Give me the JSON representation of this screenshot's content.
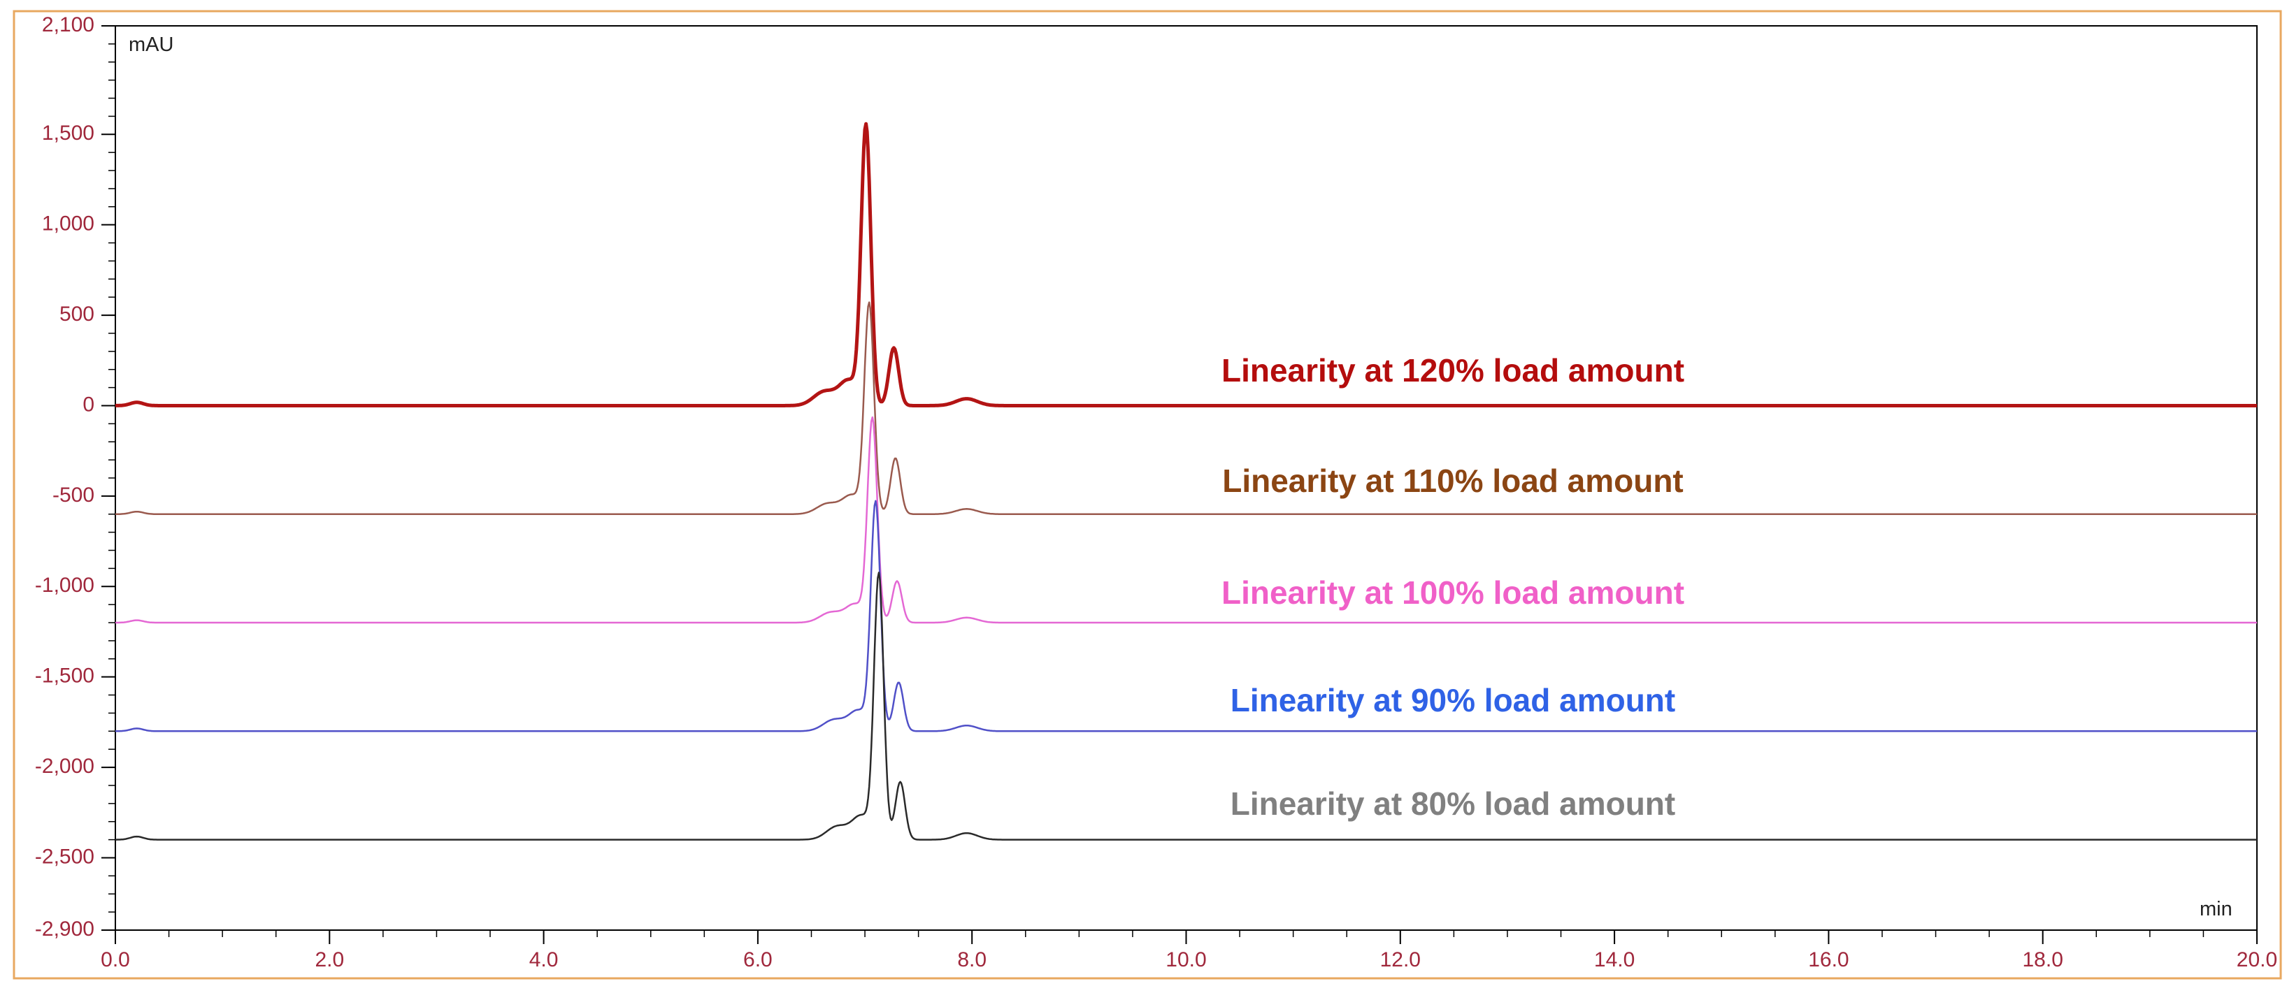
{
  "chart_data": {
    "type": "line",
    "title": "",
    "xlabel": "min",
    "ylabel": "mAU",
    "xlim": [
      0,
      20
    ],
    "ylim": [
      -2900,
      2100
    ],
    "x_ticks": [
      "0.0",
      "2.0",
      "4.0",
      "6.0",
      "8.0",
      "10.0",
      "12.0",
      "14.0",
      "16.0",
      "18.0",
      "20.0"
    ],
    "y_ticks": [
      "2,100",
      "1,500",
      "1,000",
      "500",
      "0",
      "-500",
      "-1,000",
      "-1,500",
      "-2,000",
      "-2,500",
      "-2,900"
    ],
    "y_tick_values": [
      2100,
      1500,
      1000,
      500,
      0,
      -500,
      -1000,
      -1500,
      -2000,
      -2500,
      -2900
    ],
    "x_tick_values": [
      0,
      2,
      4,
      6,
      8,
      10,
      12,
      14,
      16,
      18,
      20
    ],
    "grid": false,
    "colors": {
      "axis_tick_text": "#a0283c",
      "frame_border": "#e8a860",
      "axis_line": "#000000"
    },
    "series": [
      {
        "name": "Linearity at 120% load amount",
        "label": "Linearity at 120% load amount",
        "color": "#b31414",
        "label_color": "#b40d0d",
        "baseline": 0,
        "main_peak_apex": 1530,
        "secondary_peak_apex": 320,
        "line_weight": "bold"
      },
      {
        "name": "Linearity at 110% load amount",
        "label": "Linearity at 110% load amount",
        "color": "#9a5a4e",
        "label_color": "#8b4513",
        "baseline": -600,
        "main_peak_apex": 550,
        "secondary_peak_apex": -290,
        "line_weight": "thin"
      },
      {
        "name": "Linearity at 100% load amount",
        "label": "Linearity at 100% load amount",
        "color": "#e468d4",
        "label_color": "#f060c8",
        "baseline": -1200,
        "main_peak_apex": -85,
        "secondary_peak_apex": -970,
        "line_weight": "thin"
      },
      {
        "name": "Linearity at 90% load amount",
        "label": "Linearity at 90% load amount",
        "color": "#5050c8",
        "label_color": "#2f62e6",
        "baseline": -1800,
        "main_peak_apex": -550,
        "secondary_peak_apex": -1530,
        "line_weight": "thin"
      },
      {
        "name": "Linearity at 80% load amount",
        "label": "Linearity at 80% load amount",
        "color": "#2a2a2a",
        "label_color": "#808080",
        "baseline": -2400,
        "main_peak_apex": -950,
        "secondary_peak_apex": -2080,
        "line_weight": "thin"
      }
    ]
  }
}
